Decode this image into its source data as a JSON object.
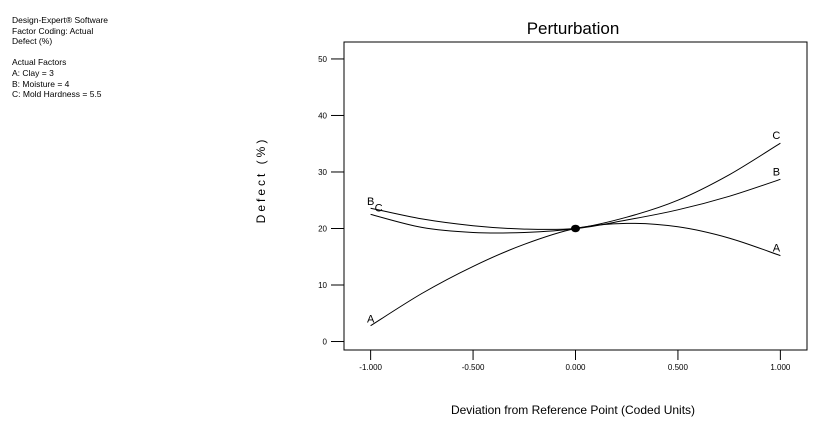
{
  "software_info": {
    "lines": [
      "Design-Expert® Software",
      "Factor Coding: Actual",
      "Defect  (%)"
    ],
    "factors_title": "Actual Factors",
    "factors": [
      "A: Clay = 3",
      "B: Moisture = 4",
      "C: Mold Hardness = 5.5"
    ]
  },
  "chart_data": {
    "type": "line",
    "title": "Perturbation",
    "xlabel": "Deviation from Reference Point (Coded Units)",
    "ylabel": "Defect (%)",
    "xlim": [
      -1.13,
      1.13
    ],
    "ylim": [
      -1.5,
      53
    ],
    "xticks": [
      -1.0,
      -0.5,
      0.0,
      0.5,
      1.0
    ],
    "xtick_labels": [
      "-1.000",
      "-0.500",
      "0.000",
      "0.500",
      "1.000"
    ],
    "yticks": [
      0,
      10,
      20,
      30,
      40,
      50
    ],
    "ytick_labels": [
      "0",
      "10",
      "20",
      "30",
      "40",
      "50"
    ],
    "reference_point": {
      "x": 0.0,
      "y": 20.0
    },
    "series": [
      {
        "name": "A",
        "x": [
          -1.0,
          -0.75,
          -0.5,
          -0.25,
          0.0,
          0.25,
          0.5,
          0.75,
          1.0
        ],
        "y": [
          2.8,
          8.5,
          13.3,
          17.2,
          20.0,
          20.9,
          20.3,
          18.3,
          15.2
        ]
      },
      {
        "name": "B",
        "x": [
          -1.0,
          -0.75,
          -0.5,
          -0.25,
          0.0,
          0.25,
          0.5,
          0.75,
          1.0
        ],
        "y": [
          23.6,
          21.7,
          20.5,
          19.9,
          20.0,
          21.5,
          23.3,
          25.7,
          28.7
        ]
      },
      {
        "name": "C",
        "x": [
          -1.0,
          -0.75,
          -0.5,
          -0.25,
          0.0,
          0.25,
          0.5,
          0.75,
          1.0
        ],
        "y": [
          22.5,
          20.2,
          19.3,
          19.3,
          20.0,
          22.0,
          25.0,
          29.5,
          35.1
        ]
      }
    ]
  }
}
